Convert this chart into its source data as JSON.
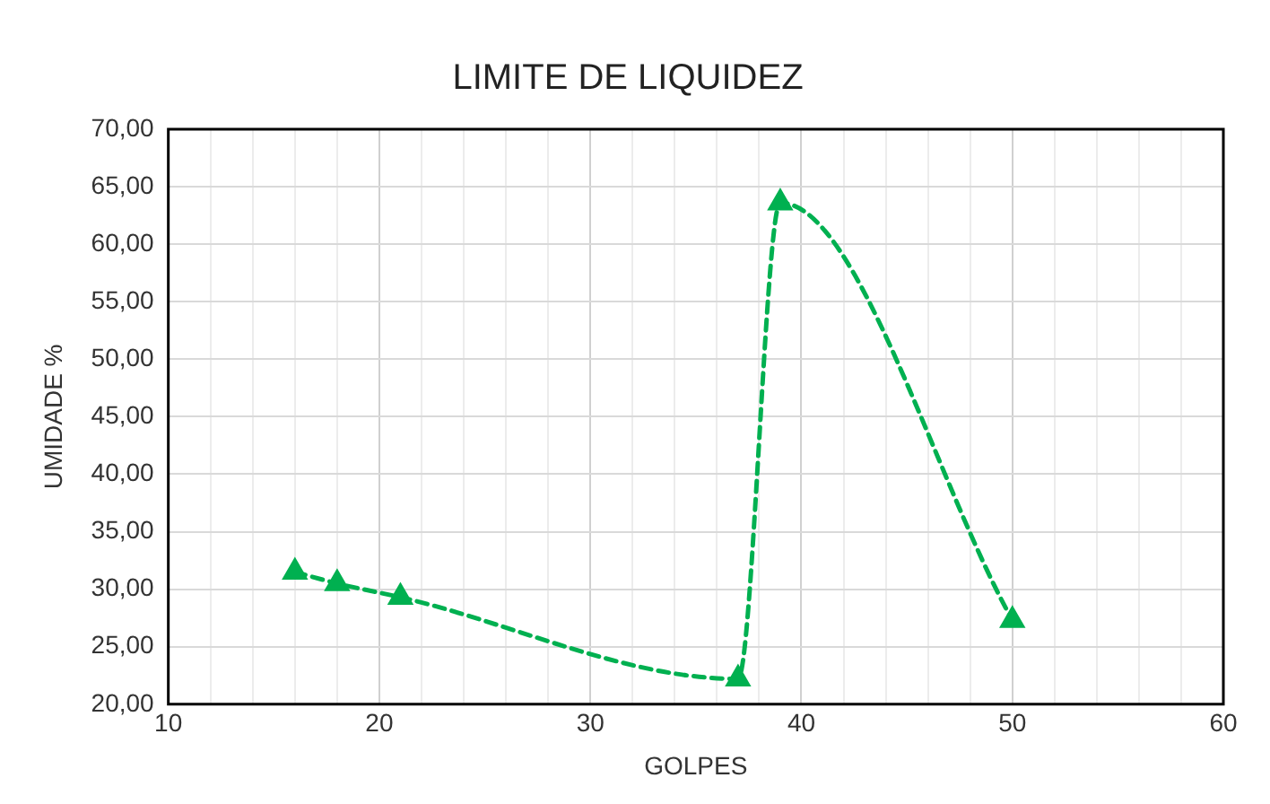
{
  "chart_data": {
    "type": "line",
    "title": "LIMITE DE LIQUIDEZ",
    "xlabel": "GOLPES",
    "ylabel": "UMIDADE %",
    "x": [
      16,
      18,
      21,
      37,
      39,
      50
    ],
    "series": [
      {
        "color": "#00b050",
        "values": [
          31.5,
          30.5,
          29.3,
          22.2,
          63.6,
          27.3
        ]
      }
    ],
    "xlim": [
      10,
      60
    ],
    "xticks": [
      10,
      {
        "value": 12,
        "label": null
      },
      {
        "value": 14,
        "label": null
      },
      {
        "value": 16,
        "label": null
      },
      {
        "value": 18,
        "label": null
      },
      20,
      {
        "value": 22,
        "label": null
      },
      {
        "value": 24,
        "label": null
      },
      {
        "value": 26,
        "label": null
      },
      {
        "value": 28,
        "label": null
      },
      30,
      {
        "value": 32,
        "label": null
      },
      {
        "value": 34,
        "label": null
      },
      {
        "value": 36,
        "label": null
      },
      {
        "value": 38,
        "label": null
      },
      40,
      {
        "value": 42,
        "label": null
      },
      {
        "value": 44,
        "label": null
      },
      {
        "value": 46,
        "label": null
      },
      {
        "value": 48,
        "label": null
      },
      50,
      {
        "value": 52,
        "label": null
      },
      {
        "value": 54,
        "label": null
      },
      {
        "value": 56,
        "label": null
      },
      {
        "value": 58,
        "label": null
      },
      60
    ],
    "ylim": [
      20,
      70
    ],
    "yticks": [
      {
        "value": 20,
        "label": "20,00"
      },
      {
        "value": 25,
        "label": "25,00"
      },
      {
        "value": 30,
        "label": "30,00"
      },
      {
        "value": 35,
        "label": "35,00"
      },
      {
        "value": 40,
        "label": "40,00"
      },
      {
        "value": 45,
        "label": "45,00"
      },
      {
        "value": 50,
        "label": "50,00"
      },
      {
        "value": 55,
        "label": "55,00"
      },
      {
        "value": 60,
        "label": "60,00"
      },
      {
        "value": 65,
        "label": "65,00"
      },
      {
        "value": 70,
        "label": "70,00"
      }
    ],
    "grid": true,
    "legend": false,
    "marker": "triangle",
    "line_style": "dashed"
  }
}
